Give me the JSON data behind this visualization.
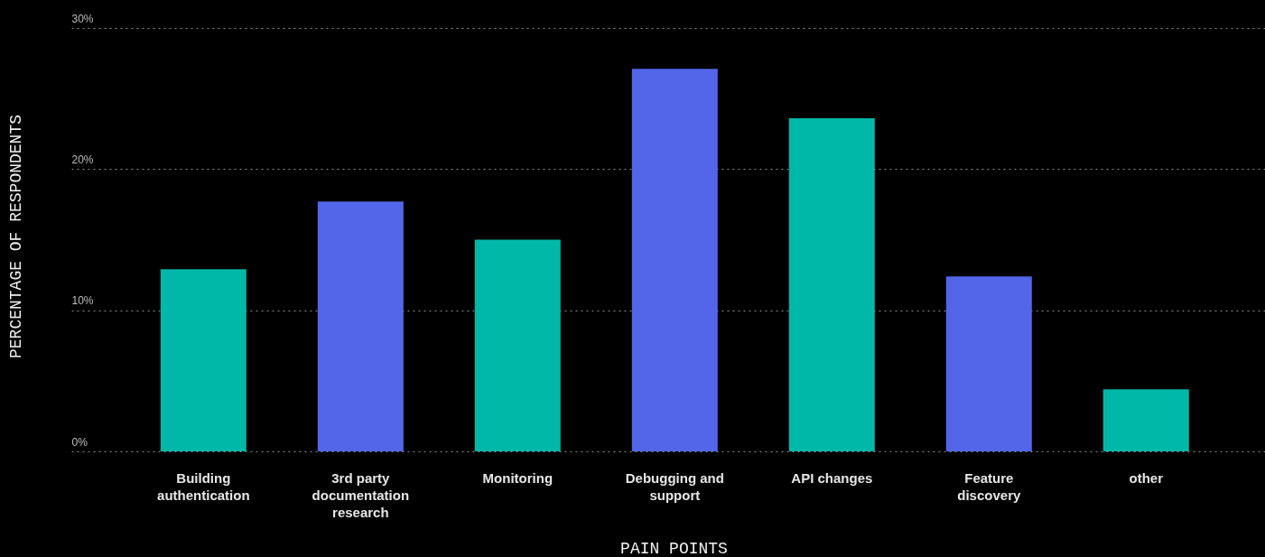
{
  "chart_data": {
    "type": "bar",
    "xlabel": "PAIN POINTS",
    "ylabel": "PERCENTAGE OF RESPONDENTS",
    "categories": [
      "Building authentication",
      "3rd party documentation research",
      "Monitoring",
      "Debugging and support",
      "API changes",
      "Feature discovery",
      "other"
    ],
    "values": [
      12.9,
      17.7,
      15.0,
      27.1,
      23.6,
      12.4,
      4.4
    ],
    "colors": [
      "#00b8a8",
      "#5366ea",
      "#00b8a8",
      "#5366ea",
      "#00b8a8",
      "#5366ea",
      "#00b8a8"
    ],
    "ylim": [
      0,
      30
    ],
    "yticks": [
      {
        "value": 0,
        "label": "0%"
      },
      {
        "value": 10,
        "label": "10%"
      },
      {
        "value": 20,
        "label": "20%"
      },
      {
        "value": 30,
        "label": "30%"
      }
    ],
    "grid": "y"
  }
}
